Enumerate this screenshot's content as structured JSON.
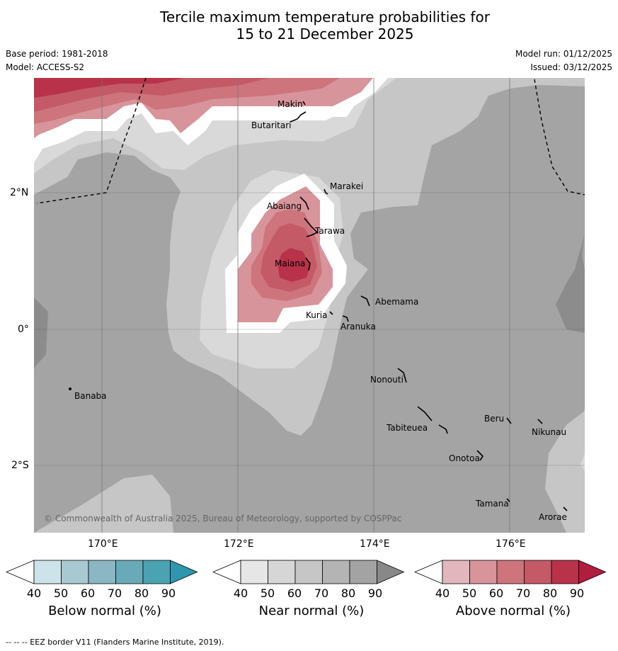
{
  "title_line1": "Tercile maximum temperature probabilities for",
  "title_line2": "15 to 21 December 2025",
  "base_period": "Base period: 1981-2018",
  "model": "Model: ACCESS-S2",
  "model_run": "Model run: 01/12/2025",
  "issued": "Issued: 03/12/2025",
  "copyright": "© Commonwealth of Australia 2025, Bureau of Meteorology, supported by COSPPac",
  "axes": {
    "lon_labels": [
      "170°E",
      "172°E",
      "174°E",
      "176°E"
    ],
    "lat_labels": [
      "2°N",
      "0°",
      "2°S"
    ]
  },
  "places": [
    "Makin",
    "Butaritari",
    "Marakei",
    "Abaiang",
    "Tarawa",
    "Maiana",
    "Abemama",
    "Kuria",
    "Aranuka",
    "Nonouti",
    "Banaba",
    "Tabiteuea",
    "Beru",
    "Nikunau",
    "Onotoa",
    "Tamana",
    "Arorae"
  ],
  "legends": {
    "below": {
      "title": "Below normal (%)",
      "colors": [
        "#ffffff",
        "#cde3ea",
        "#a8c9d2",
        "#8ab7c3",
        "#6aaab8",
        "#4aa2b2",
        "#2f97ad"
      ]
    },
    "near": {
      "title": "Near normal (%)",
      "colors": [
        "#ffffff",
        "#e6e6e6",
        "#d6d6d6",
        "#c6c6c6",
        "#b4b4b4",
        "#a3a3a3",
        "#888888"
      ]
    },
    "above": {
      "title": "Above normal (%)",
      "colors": [
        "#ffffff",
        "#e2b6bd",
        "#d8949b",
        "#cd747c",
        "#c45a66",
        "#b8324a",
        "#b01e3f"
      ]
    },
    "ticks": [
      "40",
      "50",
      "60",
      "70",
      "80",
      "90"
    ]
  },
  "footnote": "-- -- -- EEZ border V11 (Flanders Marine Institute, 2019)."
}
